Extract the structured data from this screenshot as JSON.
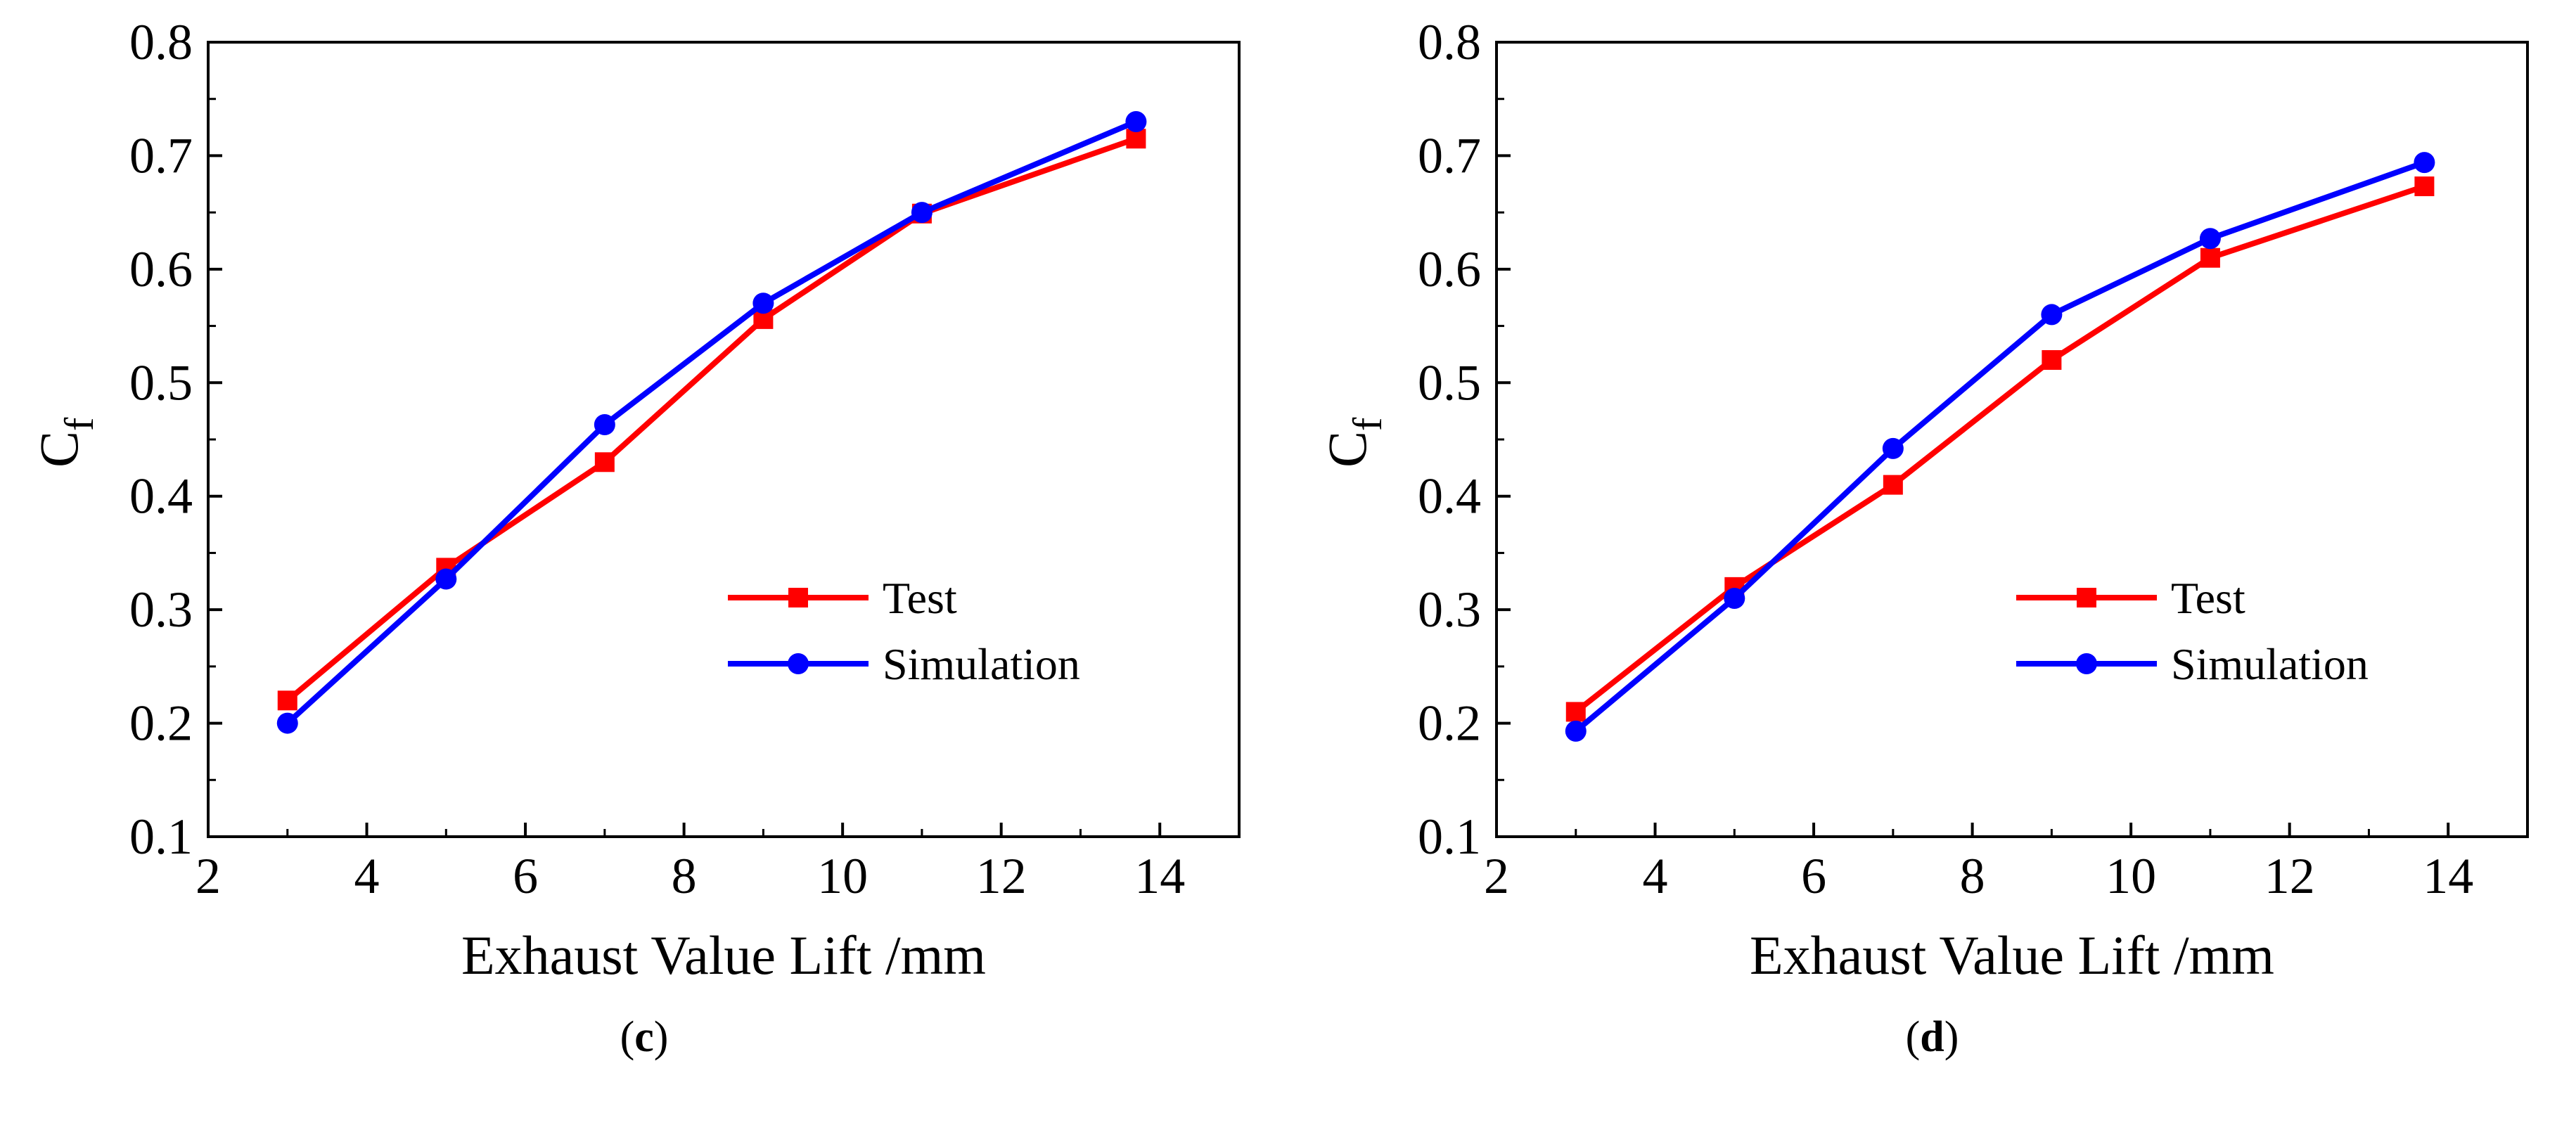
{
  "panels": [
    {
      "id": "c",
      "caption_letter": "c",
      "chart_data": {
        "type": "line",
        "xlabel": "Exhaust Value Lift /mm",
        "ylabel_main": "C",
        "ylabel_sub": "f",
        "xlim": [
          2,
          15
        ],
        "ylim": [
          0.1,
          0.8
        ],
        "xticks": [
          2,
          4,
          6,
          8,
          10,
          12,
          14
        ],
        "yticks": [
          0.1,
          0.2,
          0.3,
          0.4,
          0.5,
          0.6,
          0.7,
          0.8
        ],
        "legend_position": "lower-right",
        "grid": false,
        "series": [
          {
            "name": "Test",
            "color": "#ff0000",
            "marker": "square",
            "x": [
              3,
              5,
              7,
              9,
              11,
              13.7
            ],
            "y": [
              0.22,
              0.337,
              0.43,
              0.556,
              0.649,
              0.715
            ]
          },
          {
            "name": "Simulation",
            "color": "#0000ff",
            "marker": "circle",
            "x": [
              3,
              5,
              7,
              9,
              11,
              13.7
            ],
            "y": [
              0.2,
              0.327,
              0.463,
              0.57,
              0.65,
              0.73
            ]
          }
        ]
      }
    },
    {
      "id": "d",
      "caption_letter": "d",
      "chart_data": {
        "type": "line",
        "xlabel": "Exhaust Value Lift /mm",
        "ylabel_main": "C",
        "ylabel_sub": "f",
        "xlim": [
          2,
          15
        ],
        "ylim": [
          0.1,
          0.8
        ],
        "xticks": [
          2,
          4,
          6,
          8,
          10,
          12,
          14
        ],
        "yticks": [
          0.1,
          0.2,
          0.3,
          0.4,
          0.5,
          0.6,
          0.7,
          0.8
        ],
        "legend_position": "lower-right",
        "grid": false,
        "series": [
          {
            "name": "Test",
            "color": "#ff0000",
            "marker": "square",
            "x": [
              3,
              5,
              7,
              9,
              11,
              13.7
            ],
            "y": [
              0.21,
              0.32,
              0.41,
              0.52,
              0.61,
              0.673
            ]
          },
          {
            "name": "Simulation",
            "color": "#0000ff",
            "marker": "circle",
            "x": [
              3,
              5,
              7,
              9,
              11,
              13.7
            ],
            "y": [
              0.193,
              0.31,
              0.442,
              0.56,
              0.627,
              0.694
            ]
          }
        ]
      }
    }
  ]
}
